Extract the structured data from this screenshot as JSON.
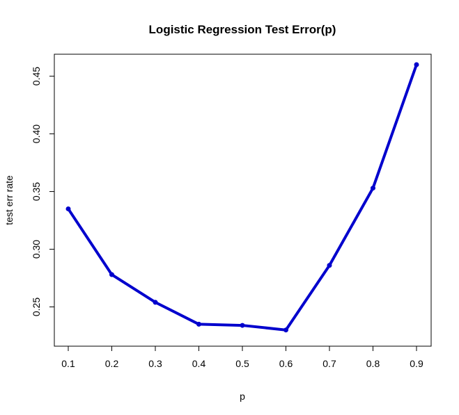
{
  "chart_data": {
    "type": "line",
    "title": "Logistic Regression Test Error(p)",
    "xlabel": "p",
    "ylabel": "test err rate",
    "x": [
      0.1,
      0.2,
      0.3,
      0.4,
      0.5,
      0.6,
      0.7,
      0.8,
      0.9
    ],
    "series": [
      {
        "values": [
          0.335,
          0.278,
          0.254,
          0.235,
          0.234,
          0.23,
          0.286,
          0.353,
          0.46
        ],
        "color": "#0000cd"
      }
    ],
    "xlim": [
      0.1,
      0.9
    ],
    "ylim": [
      0.225,
      0.46
    ],
    "xticks": [
      "0.1",
      "0.2",
      "0.3",
      "0.4",
      "0.5",
      "0.6",
      "0.7",
      "0.8",
      "0.9"
    ],
    "yticks": [
      "0.25",
      "0.30",
      "0.35",
      "0.40",
      "0.45"
    ],
    "grid": false,
    "legend": "none"
  }
}
